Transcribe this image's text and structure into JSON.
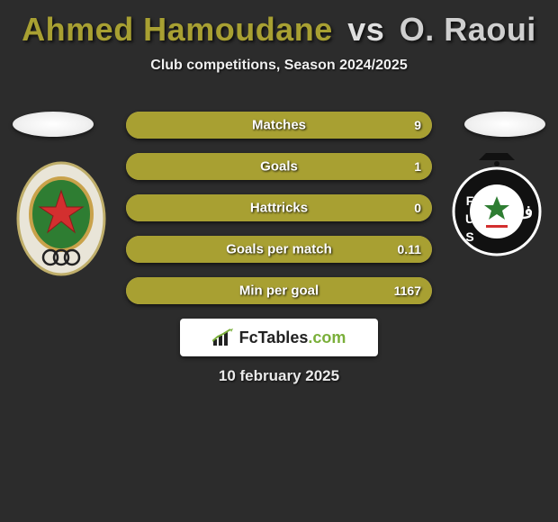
{
  "title": {
    "player1": "Ahmed Hamoudane",
    "vs": "vs",
    "player2": "O. Raoui",
    "player1_color": "#a8a032",
    "player2_color": "#cfcfcf"
  },
  "subtitle": "Club competitions, Season 2024/2025",
  "bars": [
    {
      "label": "Matches",
      "left": "",
      "right": "9",
      "left_pct": 0,
      "right_pct": 100,
      "left_color": "#a8a032",
      "right_color": "#a8a032"
    },
    {
      "label": "Goals",
      "left": "",
      "right": "1",
      "left_pct": 0,
      "right_pct": 100,
      "left_color": "#a8a032",
      "right_color": "#a8a032"
    },
    {
      "label": "Hattricks",
      "left": "",
      "right": "0",
      "left_pct": 0,
      "right_pct": 100,
      "left_color": "#a8a032",
      "right_color": "#a8a032"
    },
    {
      "label": "Goals per match",
      "left": "",
      "right": "0.11",
      "left_pct": 0,
      "right_pct": 100,
      "left_color": "#a8a032",
      "right_color": "#a8a032"
    },
    {
      "label": "Min per goal",
      "left": "",
      "right": "1167",
      "left_pct": 0,
      "right_pct": 100,
      "left_color": "#a8a032",
      "right_color": "#a8a032"
    }
  ],
  "branding": {
    "text_pre": "FcTables",
    "text_post": ".com"
  },
  "date": "10 february 2025",
  "crest_left": {
    "shield_fill": "#2e7d32",
    "shield_border": "#c9a24a",
    "star_fill": "#d32f2f",
    "rings_color": "#222"
  },
  "crest_right": {
    "circle_fill": "#111",
    "circle_border": "#fff",
    "inner_fill": "#fff",
    "accent": "#d32f2f"
  },
  "colors": {
    "background": "#2c2c2c",
    "bar_track": "#aaa07a"
  }
}
